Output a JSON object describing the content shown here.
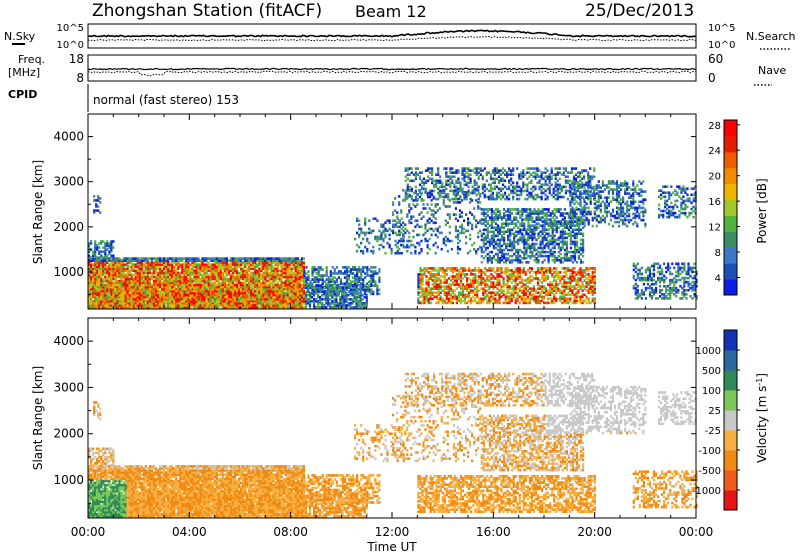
{
  "header": {
    "station": "Zhongshan Station (fitACF)",
    "beam": "Beam 12",
    "date": "25/Dec/2013"
  },
  "noise_panel": {
    "left_label": "N.Sky",
    "left_ticks": [
      "10^5",
      "10^0"
    ],
    "right_ticks": [
      "10^5",
      "10^0"
    ],
    "right_label": "N.Search"
  },
  "freq_panel": {
    "left_label_1": "Freq.",
    "left_label_2": "[MHz]",
    "left_ticks": [
      "18",
      "8"
    ],
    "right_ticks": [
      "60",
      "0"
    ],
    "right_label": "Nave"
  },
  "cpid": {
    "label": "CPID",
    "mode_text": "normal (fast stereo) 153"
  },
  "chart_data": [
    {
      "type": "heatmap",
      "quantity": "Power",
      "ylabel": "Slant Range [km]",
      "xlabel": "Time UT",
      "xlim": [
        "00:00",
        "00:00"
      ],
      "x_ticks": [
        "00:00",
        "04:00",
        "08:00",
        "12:00",
        "16:00",
        "20:00",
        "00:00"
      ],
      "ylim": [
        180,
        4500
      ],
      "y_ticks": [
        "1000",
        "2000",
        "3000",
        "4000"
      ],
      "colorbar": {
        "label": "Power [dB]",
        "ticks": [
          "4",
          "8",
          "12",
          "16",
          "20",
          "24",
          "28"
        ],
        "range": [
          0,
          30
        ],
        "colors": [
          "#0a1ee6",
          "#1e50b4",
          "#3c78c8",
          "#3c8c64",
          "#50b43c",
          "#a0c828",
          "#f0b400",
          "#f08c00",
          "#f05a00",
          "#e61e00",
          "#ff0000"
        ]
      }
    },
    {
      "type": "heatmap",
      "quantity": "Velocity",
      "ylabel": "Slant Range [km]",
      "xlabel": "Time UT",
      "xlim": [
        "00:00",
        "00:00"
      ],
      "x_ticks": [
        "00:00",
        "04:00",
        "08:00",
        "12:00",
        "16:00",
        "20:00",
        "00:00"
      ],
      "ylim": [
        180,
        4500
      ],
      "y_ticks": [
        "1000",
        "2000",
        "3000",
        "4000"
      ],
      "colorbar": {
        "label": "Velocity [m s^-1]",
        "ticks": [
          "1000",
          "500",
          "100",
          "25",
          "-25",
          "-100",
          "-500",
          "-1000"
        ],
        "colors": [
          "#1432b4",
          "#2d69a0",
          "#2e8b57",
          "#7ec85a",
          "#c8c8c8",
          "#f5b041",
          "#f08a14",
          "#f05a1e",
          "#e61414"
        ]
      }
    }
  ]
}
